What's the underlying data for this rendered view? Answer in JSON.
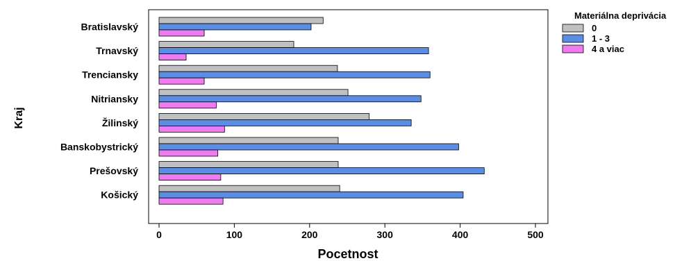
{
  "chart_data": {
    "type": "bar",
    "orientation": "horizontal",
    "title": "",
    "xlabel": "Pocetnost",
    "ylabel": "Kraj",
    "categories": [
      "Bratislavský",
      "Trnavský",
      "Trenciansky",
      "Nitriansky",
      "Žilinský",
      "Banskobystrický",
      "Prešovský",
      "Košický"
    ],
    "xlim": [
      0,
      500
    ],
    "xticks": [
      0,
      100,
      200,
      300,
      400,
      500
    ],
    "grid": false,
    "legend": {
      "title": "Materiálna deprivácia",
      "placement": "top-right"
    },
    "series": [
      {
        "name": "0",
        "color": "#c0c0c0",
        "values": [
          218,
          179,
          237,
          251,
          279,
          238,
          238,
          240
        ]
      },
      {
        "name": "1 - 3",
        "color": "#5a8ee6",
        "values": [
          202,
          358,
          360,
          348,
          335,
          398,
          432,
          404
        ]
      },
      {
        "name": "4 a viac",
        "color": "#f07af0",
        "values": [
          60,
          36,
          60,
          76,
          87,
          78,
          82,
          85
        ]
      }
    ]
  }
}
